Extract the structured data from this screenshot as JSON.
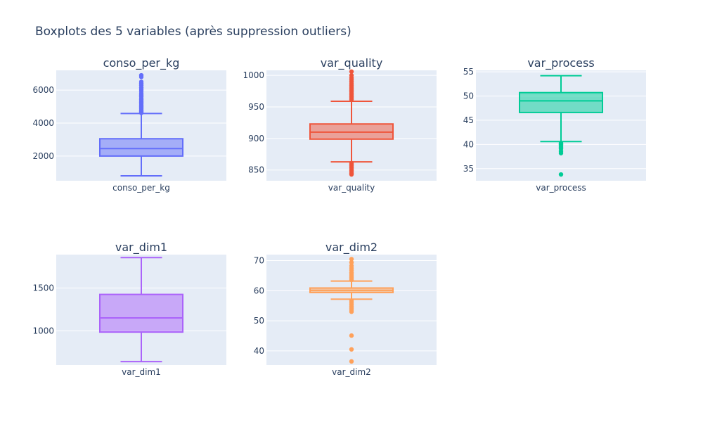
{
  "figure": {
    "title": "Boxplots des 5 variables (après suppression outliers)",
    "background": "#ffffff",
    "plot_background": "#e5ecf6",
    "grid_color": "#ffffff"
  },
  "chart_data": [
    {
      "type": "box",
      "title": "conso_per_kg",
      "category": "conso_per_kg",
      "color": "#636efa",
      "ylim": [
        500,
        7200
      ],
      "yticks": [
        2000,
        4000,
        6000
      ],
      "ytick_labels": [
        "2000",
        "4000",
        "6000"
      ],
      "box": {
        "min": 800,
        "q1": 2000,
        "median": 2450,
        "q3": 3050,
        "max": 4580
      },
      "outliers": [
        4620,
        4680,
        4750,
        4800,
        4880,
        4950,
        5020,
        5100,
        5180,
        5250,
        5330,
        5420,
        5500,
        5600,
        5700,
        5820,
        5950,
        6050,
        6150,
        6280,
        6400,
        6500,
        6800,
        6900
      ]
    },
    {
      "type": "box",
      "title": "var_quality",
      "category": "var_quality",
      "color": "#ef553b",
      "ylim": [
        833,
        1008
      ],
      "yticks": [
        850,
        900,
        950,
        1000
      ],
      "ytick_labels": [
        "850",
        "900",
        "950",
        "1000"
      ],
      "box": {
        "min": 863,
        "q1": 899,
        "median": 910,
        "q3": 923,
        "max": 959
      },
      "outliers": [
        843,
        845,
        847,
        849,
        851,
        853,
        855,
        857,
        859,
        861,
        962,
        964,
        966,
        968,
        970,
        972,
        974,
        976,
        978,
        980,
        982,
        984,
        987,
        990,
        993,
        996,
        1000,
        1006
      ]
    },
    {
      "type": "box",
      "title": "var_process",
      "category": "var_process",
      "color": "#00cc96",
      "ylim": [
        32.5,
        55.3
      ],
      "yticks": [
        35,
        40,
        45,
        50,
        55
      ],
      "ytick_labels": [
        "35",
        "40",
        "45",
        "50",
        "55"
      ],
      "box": {
        "min": 40.6,
        "q1": 46.6,
        "median": 49.0,
        "q3": 50.7,
        "max": 54.2
      },
      "outliers": [
        40.3,
        40.1,
        39.9,
        39.7,
        39.4,
        39.1,
        38.6,
        38.2,
        33.8
      ]
    },
    {
      "type": "box",
      "title": "var_dim1",
      "category": "var_dim1",
      "color": "#ab63fa",
      "ylim": [
        600,
        1890
      ],
      "yticks": [
        1000,
        1500
      ],
      "ytick_labels": [
        "1000",
        "1500"
      ],
      "box": {
        "min": 640,
        "q1": 985,
        "median": 1150,
        "q3": 1425,
        "max": 1855
      },
      "outliers": []
    },
    {
      "type": "box",
      "title": "var_dim2",
      "category": "var_dim2",
      "color": "#ffa15a",
      "ylim": [
        35.3,
        72.0
      ],
      "yticks": [
        40,
        50,
        60,
        70
      ],
      "ytick_labels": [
        "40",
        "50",
        "60",
        "70"
      ],
      "box": {
        "min": 57.2,
        "q1": 59.4,
        "median": 60.1,
        "q3": 60.9,
        "max": 63.2
      },
      "outliers": [
        36.5,
        40.5,
        45.1,
        53.0,
        53.6,
        54.2,
        54.8,
        55.4,
        56.0,
        56.6,
        63.6,
        64.0,
        64.5,
        65.0,
        65.5,
        66.0,
        66.8,
        67.5,
        68.3,
        69.4,
        70.5
      ]
    }
  ]
}
